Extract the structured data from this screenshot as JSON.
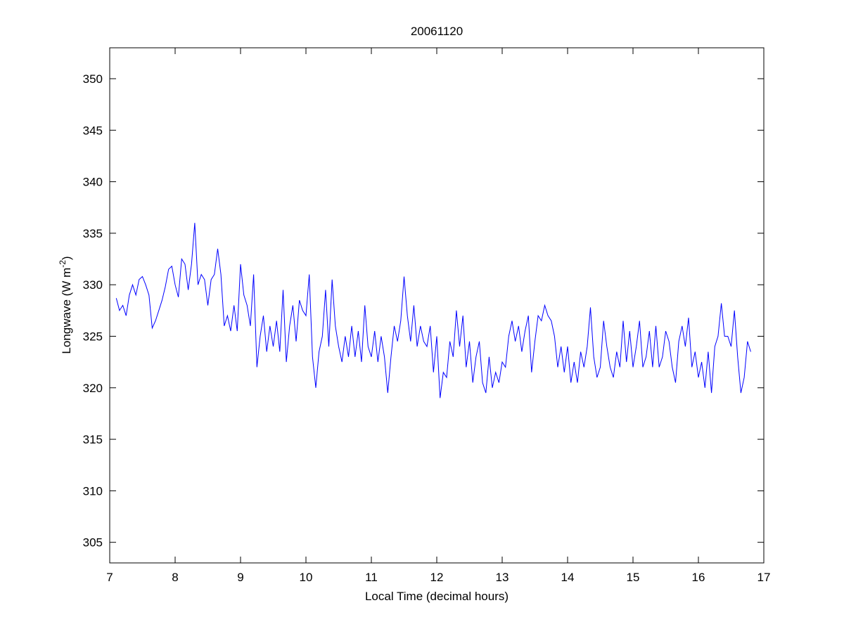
{
  "chart_data": {
    "type": "line",
    "title": "20061120",
    "xlabel": "Local Time (decimal hours)",
    "ylabel": "Longwave (W m",
    "ylabel_sup": "-2",
    "ylabel_end": ")",
    "xlim": [
      7,
      17
    ],
    "ylim": [
      303,
      353
    ],
    "xticks": [
      7,
      8,
      9,
      10,
      11,
      12,
      13,
      14,
      15,
      16,
      17
    ],
    "yticks": [
      305,
      310,
      315,
      320,
      325,
      330,
      335,
      340,
      345,
      350
    ],
    "grid": false,
    "line_color": "#0000ff",
    "series": [
      {
        "name": "Longwave",
        "x_start": 7.1,
        "x_step": 0.05,
        "values": [
          328.7,
          327.5,
          328,
          327,
          329,
          330,
          329,
          330.5,
          330.8,
          330,
          329,
          325.8,
          326.5,
          327.5,
          328.5,
          329.8,
          331.5,
          331.8,
          330,
          328.8,
          332.5,
          332,
          329.5,
          332,
          336,
          330,
          331,
          330.5,
          328,
          330.5,
          331,
          333.5,
          331,
          326,
          327,
          325.5,
          328,
          325.5,
          332,
          329,
          328,
          326,
          331,
          322,
          325,
          327,
          323.5,
          326,
          324,
          326.5,
          323.5,
          329.5,
          322.5,
          326,
          328,
          324.5,
          328.5,
          327.5,
          327,
          331,
          323,
          320,
          323.5,
          325,
          329.5,
          324,
          330.5,
          326,
          324,
          322.5,
          325,
          323,
          326,
          323,
          325.5,
          322.5,
          328,
          324,
          323,
          325.5,
          322.5,
          325,
          323,
          319.5,
          323,
          326,
          324.5,
          326.5,
          330.8,
          327,
          324.5,
          328,
          324,
          326,
          324.5,
          324,
          326,
          321.5,
          325,
          319,
          321.5,
          321,
          324.5,
          323,
          327.5,
          324,
          327,
          322,
          324.5,
          320.5,
          323,
          324.5,
          320.5,
          319.5,
          323,
          320,
          321.5,
          320.5,
          322.5,
          322,
          325,
          326.5,
          324.5,
          326,
          323.5,
          325.5,
          327,
          321.5,
          324.5,
          327,
          326.5,
          328,
          327,
          326.5,
          325,
          322,
          324,
          321.5,
          324,
          320.5,
          322.5,
          320.5,
          323.5,
          322,
          324,
          327.8,
          323,
          321,
          322,
          326.5,
          324,
          322,
          321,
          323.5,
          322,
          326.5,
          322.5,
          325.5,
          322,
          324,
          326.5,
          322,
          323,
          325.5,
          322,
          326,
          322,
          323,
          325.5,
          324.5,
          322,
          320.5,
          324.5,
          326,
          324,
          326.8,
          322,
          323.5,
          321,
          322.5,
          320,
          323.5,
          319.5,
          324,
          325,
          328.2,
          325,
          325,
          324,
          327.5,
          323,
          319.5,
          321,
          324.5,
          323.5
        ]
      }
    ]
  }
}
